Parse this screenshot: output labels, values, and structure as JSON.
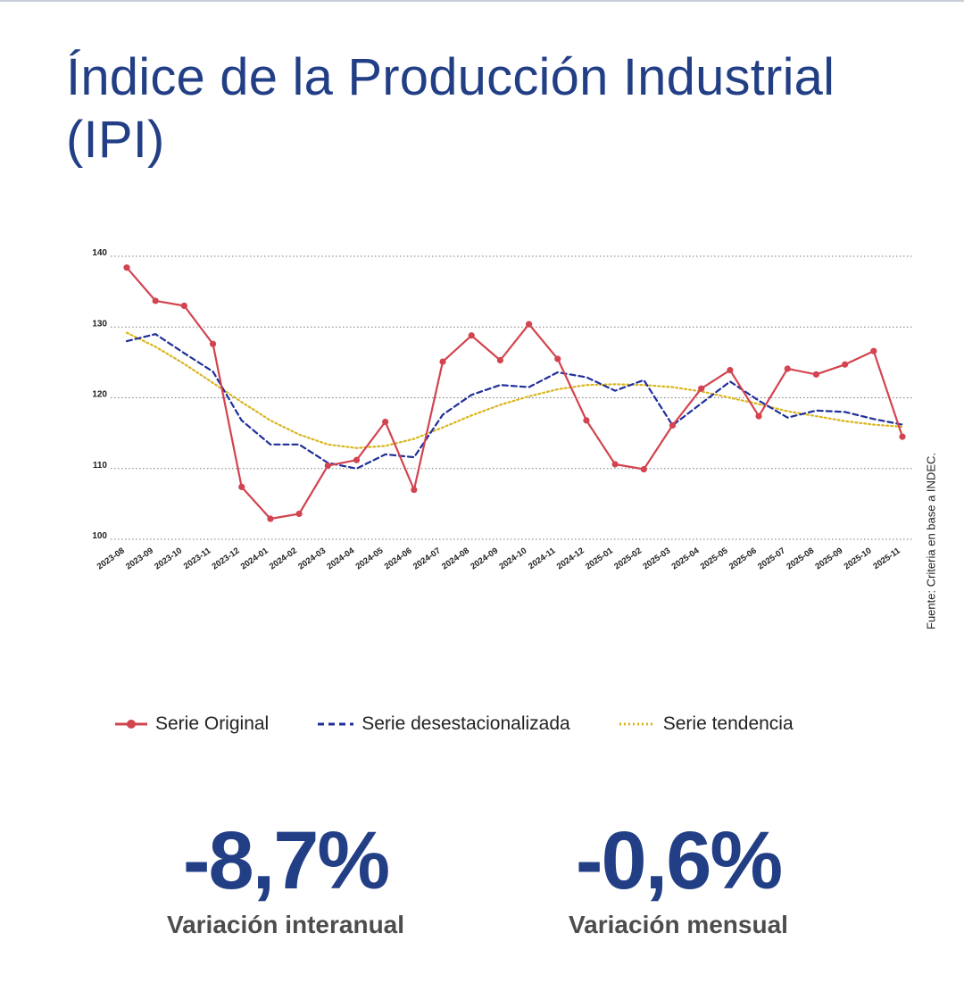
{
  "title": "Índice de la Producción Industrial (IPI)",
  "source_note": "Fuente: Criteria en base a INDEC.",
  "colors": {
    "title": "#223f86",
    "original": "#d2444f",
    "desestacionalizada": "#1f2f9a",
    "tendencia": "#d9b51d",
    "grid": "#7a7a7a",
    "kpi_value": "#223f86",
    "kpi_label": "#4d4d4d"
  },
  "chart_data": {
    "type": "line",
    "title": "Índice de la Producción Industrial (IPI)",
    "xlabel": "",
    "ylabel": "",
    "ylim": [
      100,
      140
    ],
    "yticks": [
      100,
      110,
      120,
      130,
      140
    ],
    "grid": true,
    "legend_position": "bottom",
    "categories": [
      "2023-08",
      "2023-09",
      "2023-10",
      "2023-11",
      "2023-12",
      "2024-01",
      "2024-02",
      "2024-03",
      "2024-04",
      "2024-05",
      "2024-06",
      "2024-07",
      "2024-08",
      "2024-09",
      "2024-10",
      "2024-11",
      "2024-12",
      "2025-01",
      "2025-02",
      "2025-03",
      "2025-04",
      "2025-05",
      "2025-06",
      "2025-07",
      "2025-08",
      "2025-09",
      "2025-10",
      "2025-11"
    ],
    "series": [
      {
        "name": "Serie Original",
        "style": "solid-markers",
        "values": [
          138.4,
          133.7,
          133.0,
          127.6,
          107.4,
          102.9,
          103.6,
          110.4,
          111.2,
          116.6,
          107.0,
          125.1,
          128.8,
          125.3,
          130.4,
          125.5,
          116.8,
          110.6,
          109.9,
          116.1,
          121.3,
          123.9,
          117.4,
          124.1,
          123.3,
          124.7,
          126.6,
          114.5
        ]
      },
      {
        "name": "Serie desestacionalizada",
        "style": "dashed",
        "values": [
          128.0,
          129.0,
          126.3,
          123.7,
          116.8,
          113.4,
          113.4,
          110.8,
          110.0,
          112.0,
          111.6,
          117.6,
          120.4,
          121.8,
          121.5,
          123.6,
          122.9,
          121.0,
          122.5,
          116.1,
          119.2,
          122.3,
          119.6,
          117.2,
          118.2,
          118.0,
          117.0,
          116.2
        ]
      },
      {
        "name": "Serie tendencia",
        "style": "dotted",
        "values": [
          129.2,
          127.2,
          124.8,
          122.1,
          119.4,
          116.8,
          114.8,
          113.4,
          112.9,
          113.2,
          114.2,
          115.8,
          117.5,
          119.0,
          120.2,
          121.2,
          121.8,
          121.9,
          121.8,
          121.5,
          120.9,
          120.0,
          119.1,
          118.1,
          117.4,
          116.7,
          116.2,
          115.9
        ]
      }
    ]
  },
  "legend": [
    {
      "label": "Serie Original"
    },
    {
      "label": "Serie desestacionalizada"
    },
    {
      "label": "Serie tendencia"
    }
  ],
  "kpis": [
    {
      "value": "-8,7%",
      "label": "Variación interanual"
    },
    {
      "value": "-0,6%",
      "label": "Variación mensual"
    }
  ]
}
